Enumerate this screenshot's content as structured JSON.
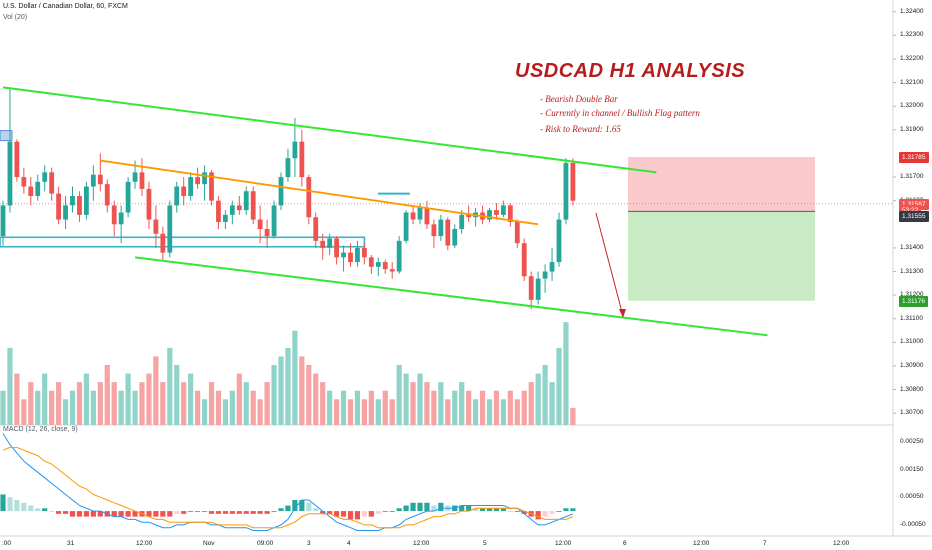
{
  "header": {
    "symbol_line": "U.S. Dollar / Canadian Dollar, 60, FXCM",
    "volume_label": "Vol (20)"
  },
  "annotation": {
    "title": "USDCAD H1 ANALYSIS",
    "notes": [
      "- Bearish Double Bar",
      "- Currently in channel / Bullish Flag pattern",
      "- Risk to Reward: 1.65"
    ]
  },
  "macd_label": "MACD (12, 26, close, 9)",
  "price_axis": {
    "ticks": [
      "1.32400",
      "1.32300",
      "1.32200",
      "1.32100",
      "1.32000",
      "1.31900",
      "1.31700",
      "1.31600",
      "1.31400",
      "1.31300",
      "1.31200",
      "1.31100",
      "1.31000",
      "1.30900",
      "1.30800",
      "1.30700"
    ],
    "tags": [
      {
        "label": "1.31785",
        "color": "#e53935",
        "price": 1.31785
      },
      {
        "label": "1.31587",
        "color": "#ef5350",
        "price": 1.31587
      },
      {
        "label": "53:22",
        "color": "#ef5350",
        "price": 1.3156
      },
      {
        "label": "1.31555",
        "color": "#363a45",
        "price": 1.31535
      },
      {
        "label": "1.31176",
        "color": "#2e9e2e",
        "price": 1.31176
      }
    ]
  },
  "macd_axis": {
    "ticks": [
      "0.00250",
      "0.00150",
      "0.00050",
      "-0.00050"
    ]
  },
  "time_axis": {
    "ticks": [
      ":00",
      "31",
      "12:00",
      "Nov",
      "09:00",
      "3",
      "4",
      "12:00",
      "5",
      "12:00",
      "6",
      "12:00",
      "7",
      "12:00"
    ]
  },
  "colors": {
    "up": "#26a69a",
    "down": "#ef5350",
    "vol_up": "#8fd3c9",
    "vol_down": "#f5a3a3",
    "channel": "#32e832",
    "flag_line": "#ff9800",
    "zone_line": "#36b5c9",
    "risk_zone": "#f9c9cc",
    "reward_zone": "#c8ebc4",
    "macd_line": "#2196f3",
    "signal_line": "#ff9800"
  },
  "chart_data": {
    "type": "candlestick",
    "price_scale": [
      1.3065,
      1.3245
    ],
    "candles": [
      [
        1.3145,
        1.316,
        1.3141,
        1.3158
      ],
      [
        1.3158,
        1.3208,
        1.3155,
        1.3185
      ],
      [
        1.3185,
        1.3186,
        1.3168,
        1.317
      ],
      [
        1.317,
        1.3174,
        1.3163,
        1.3166
      ],
      [
        1.3166,
        1.317,
        1.3158,
        1.3162
      ],
      [
        1.3162,
        1.3171,
        1.316,
        1.3168
      ],
      [
        1.3168,
        1.3175,
        1.3164,
        1.3172
      ],
      [
        1.3172,
        1.3174,
        1.316,
        1.3163
      ],
      [
        1.3163,
        1.3166,
        1.315,
        1.3152
      ],
      [
        1.3152,
        1.3162,
        1.3148,
        1.3158
      ],
      [
        1.3158,
        1.3166,
        1.3155,
        1.3162
      ],
      [
        1.3162,
        1.3164,
        1.3151,
        1.3154
      ],
      [
        1.3154,
        1.3168,
        1.3152,
        1.3166
      ],
      [
        1.3166,
        1.3175,
        1.316,
        1.3171
      ],
      [
        1.3171,
        1.318,
        1.3164,
        1.3167
      ],
      [
        1.3167,
        1.3169,
        1.3155,
        1.3158
      ],
      [
        1.3158,
        1.316,
        1.3145,
        1.315
      ],
      [
        1.315,
        1.3158,
        1.3142,
        1.3155
      ],
      [
        1.3155,
        1.317,
        1.3153,
        1.3168
      ],
      [
        1.3168,
        1.3177,
        1.3165,
        1.3172
      ],
      [
        1.3172,
        1.3178,
        1.3162,
        1.3165
      ],
      [
        1.3165,
        1.3168,
        1.3148,
        1.3152
      ],
      [
        1.3152,
        1.3158,
        1.314,
        1.3146
      ],
      [
        1.3146,
        1.3149,
        1.3135,
        1.3138
      ],
      [
        1.3138,
        1.316,
        1.3136,
        1.3158
      ],
      [
        1.3158,
        1.3168,
        1.3155,
        1.3166
      ],
      [
        1.3166,
        1.317,
        1.3158,
        1.3162
      ],
      [
        1.3162,
        1.3172,
        1.316,
        1.317
      ],
      [
        1.317,
        1.3174,
        1.3165,
        1.3167
      ],
      [
        1.3167,
        1.3175,
        1.316,
        1.3172
      ],
      [
        1.3172,
        1.3173,
        1.3158,
        1.316
      ],
      [
        1.316,
        1.3162,
        1.3148,
        1.3151
      ],
      [
        1.3151,
        1.3156,
        1.3148,
        1.3154
      ],
      [
        1.3154,
        1.316,
        1.315,
        1.3158
      ],
      [
        1.3158,
        1.3162,
        1.3154,
        1.3156
      ],
      [
        1.3156,
        1.3166,
        1.3154,
        1.3164
      ],
      [
        1.3164,
        1.3166,
        1.315,
        1.3152
      ],
      [
        1.3152,
        1.3158,
        1.3142,
        1.3148
      ],
      [
        1.3148,
        1.3152,
        1.314,
        1.3145
      ],
      [
        1.3145,
        1.316,
        1.3144,
        1.3158
      ],
      [
        1.3158,
        1.3172,
        1.3156,
        1.317
      ],
      [
        1.317,
        1.3182,
        1.3168,
        1.3178
      ],
      [
        1.3178,
        1.3195,
        1.317,
        1.3185
      ],
      [
        1.3185,
        1.319,
        1.3166,
        1.317
      ],
      [
        1.317,
        1.3171,
        1.315,
        1.3153
      ],
      [
        1.3153,
        1.3155,
        1.314,
        1.3143
      ],
      [
        1.3143,
        1.3146,
        1.3135,
        1.314
      ],
      [
        1.314,
        1.3146,
        1.3137,
        1.3144
      ],
      [
        1.3144,
        1.3145,
        1.3133,
        1.3136
      ],
      [
        1.3136,
        1.3141,
        1.313,
        1.3138
      ],
      [
        1.3138,
        1.3142,
        1.3132,
        1.3134
      ],
      [
        1.3134,
        1.3143,
        1.3132,
        1.314
      ],
      [
        1.314,
        1.3142,
        1.3133,
        1.3136
      ],
      [
        1.3136,
        1.3137,
        1.3129,
        1.3132
      ],
      [
        1.3132,
        1.3136,
        1.3128,
        1.3134
      ],
      [
        1.3134,
        1.3135,
        1.3129,
        1.3131
      ],
      [
        1.3131,
        1.3134,
        1.3127,
        1.313
      ],
      [
        1.313,
        1.3145,
        1.3129,
        1.3143
      ],
      [
        1.3143,
        1.3156,
        1.3142,
        1.3155
      ],
      [
        1.3155,
        1.3158,
        1.315,
        1.3152
      ],
      [
        1.3152,
        1.3159,
        1.315,
        1.3157
      ],
      [
        1.3157,
        1.316,
        1.3148,
        1.315
      ],
      [
        1.315,
        1.3152,
        1.314,
        1.3145
      ],
      [
        1.3145,
        1.3154,
        1.3143,
        1.3152
      ],
      [
        1.3152,
        1.3153,
        1.3139,
        1.3141
      ],
      [
        1.3141,
        1.315,
        1.314,
        1.3148
      ],
      [
        1.3148,
        1.3156,
        1.3146,
        1.3154
      ],
      [
        1.3154,
        1.3158,
        1.3151,
        1.3153
      ],
      [
        1.3153,
        1.3157,
        1.3149,
        1.3155
      ],
      [
        1.3155,
        1.3158,
        1.315,
        1.3152
      ],
      [
        1.3152,
        1.3157,
        1.3151,
        1.3156
      ],
      [
        1.3156,
        1.3159,
        1.3152,
        1.3154
      ],
      [
        1.3154,
        1.316,
        1.3153,
        1.3158
      ],
      [
        1.3158,
        1.3159,
        1.3149,
        1.3151
      ],
      [
        1.3151,
        1.3152,
        1.314,
        1.3142
      ],
      [
        1.3142,
        1.3144,
        1.3126,
        1.3128
      ],
      [
        1.3128,
        1.313,
        1.3114,
        1.3118
      ],
      [
        1.3118,
        1.313,
        1.3116,
        1.3127
      ],
      [
        1.3127,
        1.3133,
        1.3121,
        1.313
      ],
      [
        1.313,
        1.314,
        1.3126,
        1.3134
      ],
      [
        1.3134,
        1.3155,
        1.3132,
        1.3152
      ],
      [
        1.3152,
        1.3178,
        1.315,
        1.3176
      ],
      [
        1.3176,
        1.3178,
        1.3158,
        1.316
      ]
    ],
    "volume": [
      4,
      9,
      6,
      3,
      5,
      4,
      6,
      4,
      5,
      3,
      4,
      5,
      6,
      4,
      5,
      7,
      5,
      4,
      6,
      4,
      5,
      6,
      8,
      5,
      9,
      7,
      5,
      6,
      4,
      3,
      5,
      4,
      3,
      4,
      6,
      5,
      4,
      3,
      5,
      7,
      8,
      9,
      11,
      8,
      7,
      6,
      5,
      4,
      3,
      4,
      3,
      4,
      3,
      4,
      3,
      4,
      3,
      7,
      6,
      5,
      6,
      5,
      4,
      5,
      3,
      4,
      5,
      4,
      3,
      4,
      3,
      4,
      3,
      4,
      3,
      4,
      5,
      6,
      7,
      5,
      9,
      12,
      2
    ],
    "macd": [
      0.0028,
      0.0024,
      0.0021,
      0.0018,
      0.0016,
      0.0014,
      0.0012,
      0.001,
      0.0008,
      0.0006,
      0.0004,
      0.0002,
      0.0001,
      0.0,
      0.0,
      -0.0001,
      -0.0002,
      -0.0002,
      -0.0003,
      -0.0003,
      -0.0004,
      -0.0004,
      -0.0005,
      -0.0006,
      -0.0006,
      -0.0005,
      -0.0005,
      -0.0004,
      -0.0004,
      -0.0004,
      -0.0005,
      -0.0005,
      -0.0006,
      -0.0006,
      -0.0006,
      -0.0006,
      -0.0007,
      -0.0007,
      -0.0007,
      -0.0006,
      -0.0005,
      -0.0003,
      0.0001,
      0.0004,
      0.0004,
      0.0002,
      0.0,
      -0.0002,
      -0.0004,
      -0.0005,
      -0.0006,
      -0.0007,
      -0.0007,
      -0.0007,
      -0.0007,
      -0.0006,
      -0.0006,
      -0.0005,
      -0.0003,
      -0.0002,
      -0.0001,
      0.0,
      0.0,
      0.0001,
      0.0001,
      0.0001,
      0.0002,
      0.0002,
      0.0002,
      0.0002,
      0.0002,
      0.0002,
      0.0002,
      0.0001,
      0.0001,
      -0.0001,
      -0.0003,
      -0.0005,
      -0.0005,
      -0.0004,
      -0.0003,
      -0.0002,
      -0.0001
    ],
    "signal": [
      0.0022,
      0.0023,
      0.0023,
      0.0022,
      0.0021,
      0.002,
      0.0018,
      0.0017,
      0.0015,
      0.0013,
      0.0011,
      0.0009,
      0.0008,
      0.0006,
      0.0005,
      0.0004,
      0.0003,
      0.0002,
      0.0001,
      0.0,
      -0.0001,
      -0.0002,
      -0.0003,
      -0.0003,
      -0.0004,
      -0.0004,
      -0.0004,
      -0.0004,
      -0.0004,
      -0.0004,
      -0.0004,
      -0.0005,
      -0.0005,
      -0.0005,
      -0.0005,
      -0.0005,
      -0.0006,
      -0.0006,
      -0.0006,
      -0.0006,
      -0.0006,
      -0.0005,
      -0.0004,
      -0.0002,
      -0.0001,
      -0.0001,
      -0.0001,
      -0.0001,
      -0.0002,
      -0.0003,
      -0.0003,
      -0.0004,
      -0.0005,
      -0.0005,
      -0.0006,
      -0.0006,
      -0.0006,
      -0.0006,
      -0.0005,
      -0.0005,
      -0.0004,
      -0.0003,
      -0.0002,
      -0.0002,
      -0.0001,
      -0.0001,
      0.0,
      0.0,
      0.0001,
      0.0001,
      0.0001,
      0.0001,
      0.0001,
      0.0001,
      0.0001,
      0.0,
      -0.0001,
      -0.0002,
      -0.0003,
      -0.0003,
      -0.0003,
      -0.0003,
      -0.0002
    ],
    "hist": [
      0.0006,
      0.0005,
      0.0004,
      0.0003,
      0.0002,
      0.0001,
      0.0001,
      0.0,
      -0.0001,
      -0.0001,
      -0.0002,
      -0.0002,
      -0.0002,
      -0.0002,
      -0.0002,
      -0.0002,
      -0.0002,
      -0.0002,
      -0.0002,
      -0.0002,
      -0.0002,
      -0.0002,
      -0.0002,
      -0.0002,
      -0.0002,
      -0.0001,
      -0.0001,
      0.0,
      0.0,
      0.0,
      -0.0001,
      -0.0001,
      -0.0001,
      -0.0001,
      -0.0001,
      -0.0001,
      -0.0001,
      -0.0001,
      -0.0001,
      0.0,
      0.0001,
      0.0002,
      0.0004,
      0.0004,
      0.0003,
      0.0001,
      -0.0001,
      -0.0001,
      -0.0002,
      -0.0002,
      -0.0003,
      -0.0003,
      -0.0002,
      -0.0002,
      -0.0001,
      0.0,
      0.0,
      0.0001,
      0.0002,
      0.0003,
      0.0003,
      0.0003,
      0.0002,
      0.0003,
      0.0002,
      0.0002,
      0.0002,
      0.0002,
      0.0001,
      0.0001,
      0.0001,
      0.0001,
      0.0001,
      0.0,
      0.0,
      -0.0001,
      -0.0002,
      -0.0003,
      -0.0002,
      -0.0001,
      0.0,
      0.0001,
      0.0001
    ],
    "drawings": {
      "channel_upper": {
        "from": [
          0,
          1.3208
        ],
        "to": [
          94,
          1.3172
        ]
      },
      "channel_lower": {
        "from": [
          19,
          1.3136
        ],
        "to": [
          110,
          1.3103
        ]
      },
      "flag_line": {
        "from": [
          14,
          1.3177
        ],
        "to": [
          77,
          1.315
        ]
      },
      "support_zone": {
        "from": 0,
        "to": 52,
        "low": 1.31405,
        "high": 1.31445
      },
      "entry": 1.31555,
      "stop_loss": 1.31785,
      "take_profit": 1.31176,
      "current_price": 1.31587
    }
  }
}
